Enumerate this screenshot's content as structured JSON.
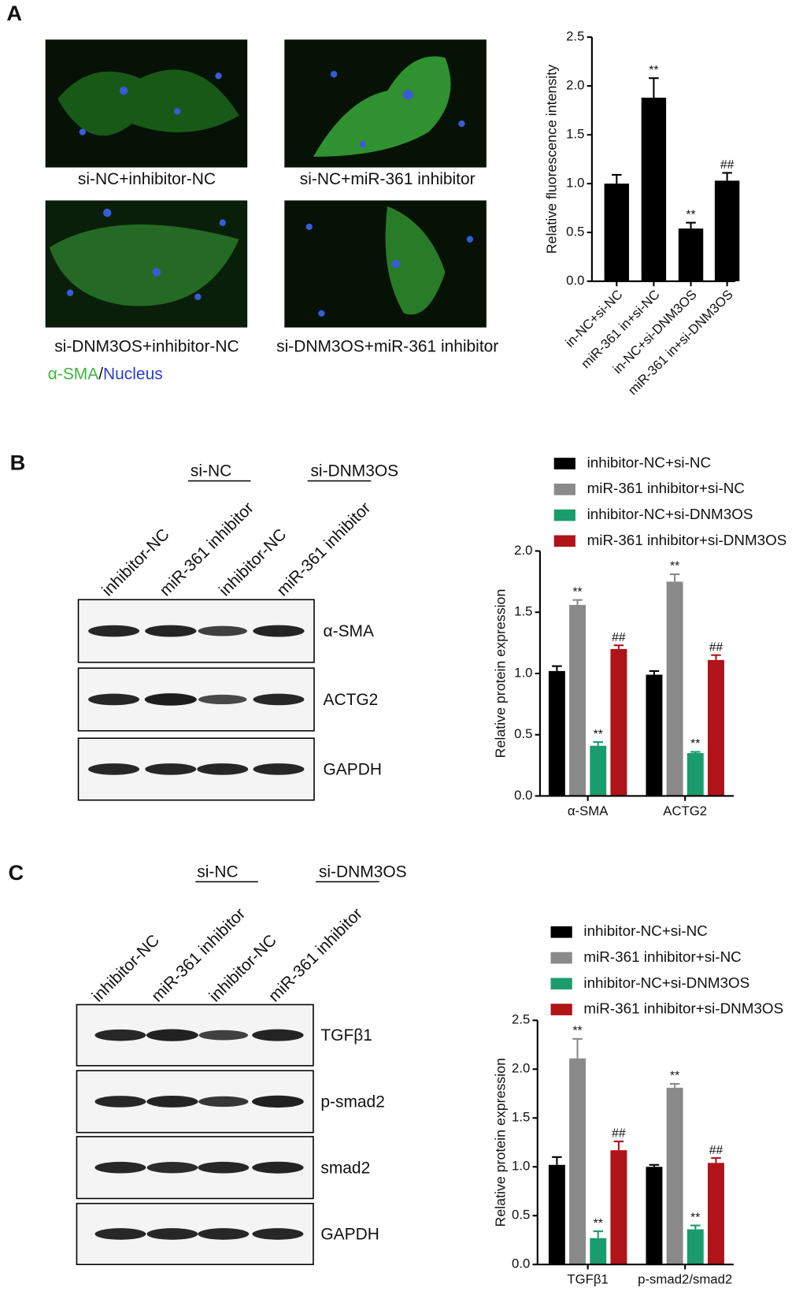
{
  "panels": [
    "A",
    "B",
    "C"
  ],
  "images": {
    "captions": [
      "si-NC+inhibitor-NC",
      "si-NC+miR-361 inhibitor",
      "si-DNM3OS+inhibitor-NC",
      "si-DNM3OS+miR-361 inhibitor"
    ],
    "stain": [
      "α-SMA",
      "/",
      "Nucleus"
    ]
  },
  "blot_b": {
    "groups": [
      "si-NC",
      "si-DNM3OS"
    ],
    "lanes": [
      "inhibitor-NC",
      "miR-361 inhibitor",
      "inhibitor-NC",
      "miR-361 inhibitor"
    ],
    "rows": [
      "α-SMA",
      "ACTG2",
      "GAPDH"
    ]
  },
  "blot_c": {
    "groups": [
      "si-NC",
      "si-DNM3OS"
    ],
    "lanes": [
      "inhibitor-NC",
      "miR-361 inhibitor",
      "inhibitor-NC",
      "miR-361 inhibitor"
    ],
    "rows": [
      "TGFβ1",
      "p-smad2",
      "smad2",
      "GAPDH"
    ]
  },
  "chart_data": [
    {
      "type": "bar",
      "ylabel": "Relative  fluorescence intensity",
      "categories": [
        "in-NC+si-NC",
        "miR-361 in+si-NC",
        "in-NC+si-DNM3OS",
        "miR-361 in+si-DNM3OS"
      ],
      "values": [
        1.0,
        1.88,
        0.54,
        1.03
      ],
      "errors": [
        0.09,
        0.2,
        0.06,
        0.08
      ],
      "annotations": [
        null,
        "**",
        "**",
        "##"
      ],
      "color": "#000000",
      "ylim": [
        0,
        2.5
      ],
      "yticks": [
        {
          "value": 0,
          "label": "0.0"
        },
        0.5,
        {
          "value": 1,
          "label": "1.0"
        },
        1.5,
        {
          "value": 2,
          "label": "2.0"
        },
        2.5
      ]
    },
    {
      "type": "grouped_bar",
      "ylabel": "Relative protein expression",
      "categories": [
        "α-SMA",
        "ACTG2"
      ],
      "series": [
        {
          "name": "inhibitor-NC+si-NC",
          "color": "#000000",
          "values": [
            1.02,
            0.99
          ],
          "errors": [
            0.04,
            0.03
          ],
          "annotations": [
            null,
            null
          ]
        },
        {
          "name": "miR-361 inhibitor+si-NC",
          "color": "#8a8a8a",
          "values": [
            1.56,
            1.75
          ],
          "errors": [
            0.04,
            0.06
          ],
          "annotations": [
            "**",
            "**"
          ]
        },
        {
          "name": "inhibitor-NC+si-DNM3OS",
          "color": "#1b9c6c",
          "values": [
            0.41,
            0.35
          ],
          "errors": [
            0.03,
            0.01
          ],
          "annotations": [
            "**",
            "**"
          ]
        },
        {
          "name": "miR-361 inhibitor+si-DNM3OS",
          "color": "#b01318",
          "values": [
            1.2,
            1.11
          ],
          "errors": [
            0.03,
            0.04
          ],
          "annotations": [
            "##",
            "##"
          ]
        }
      ],
      "ylim": [
        0,
        2
      ],
      "yticks": [
        {
          "value": 0,
          "label": "0.0"
        },
        0.5,
        {
          "value": 1,
          "label": "1.0"
        },
        1.5,
        {
          "value": 2,
          "label": "2.0"
        }
      ]
    },
    {
      "type": "grouped_bar",
      "ylabel": "Relative protein expression",
      "categories": [
        "TGFβ1",
        "p-smad2/smad2"
      ],
      "series": [
        {
          "name": "inhibitor-NC+si-NC",
          "color": "#000000",
          "values": [
            1.02,
            1.0
          ],
          "errors": [
            0.08,
            0.02
          ],
          "annotations": [
            null,
            null
          ]
        },
        {
          "name": "miR-361 inhibitor+si-NC",
          "color": "#8a8a8a",
          "values": [
            2.11,
            1.81
          ],
          "errors": [
            0.2,
            0.04
          ],
          "annotations": [
            "**",
            "**"
          ]
        },
        {
          "name": "inhibitor-NC+si-DNM3OS",
          "color": "#1b9c6c",
          "values": [
            0.27,
            0.36
          ],
          "errors": [
            0.07,
            0.04
          ],
          "annotations": [
            "**",
            "**"
          ]
        },
        {
          "name": "miR-361 inhibitor+si-DNM3OS",
          "color": "#b01318",
          "values": [
            1.17,
            1.04
          ],
          "errors": [
            0.09,
            0.05
          ],
          "annotations": [
            "##",
            "##"
          ]
        }
      ],
      "ylim": [
        0,
        2.5
      ],
      "yticks": [
        {
          "value": 0,
          "label": "0.0"
        },
        0.5,
        {
          "value": 1,
          "label": "1.0"
        },
        1.5,
        {
          "value": 2,
          "label": "2.0"
        },
        2.5
      ]
    }
  ]
}
